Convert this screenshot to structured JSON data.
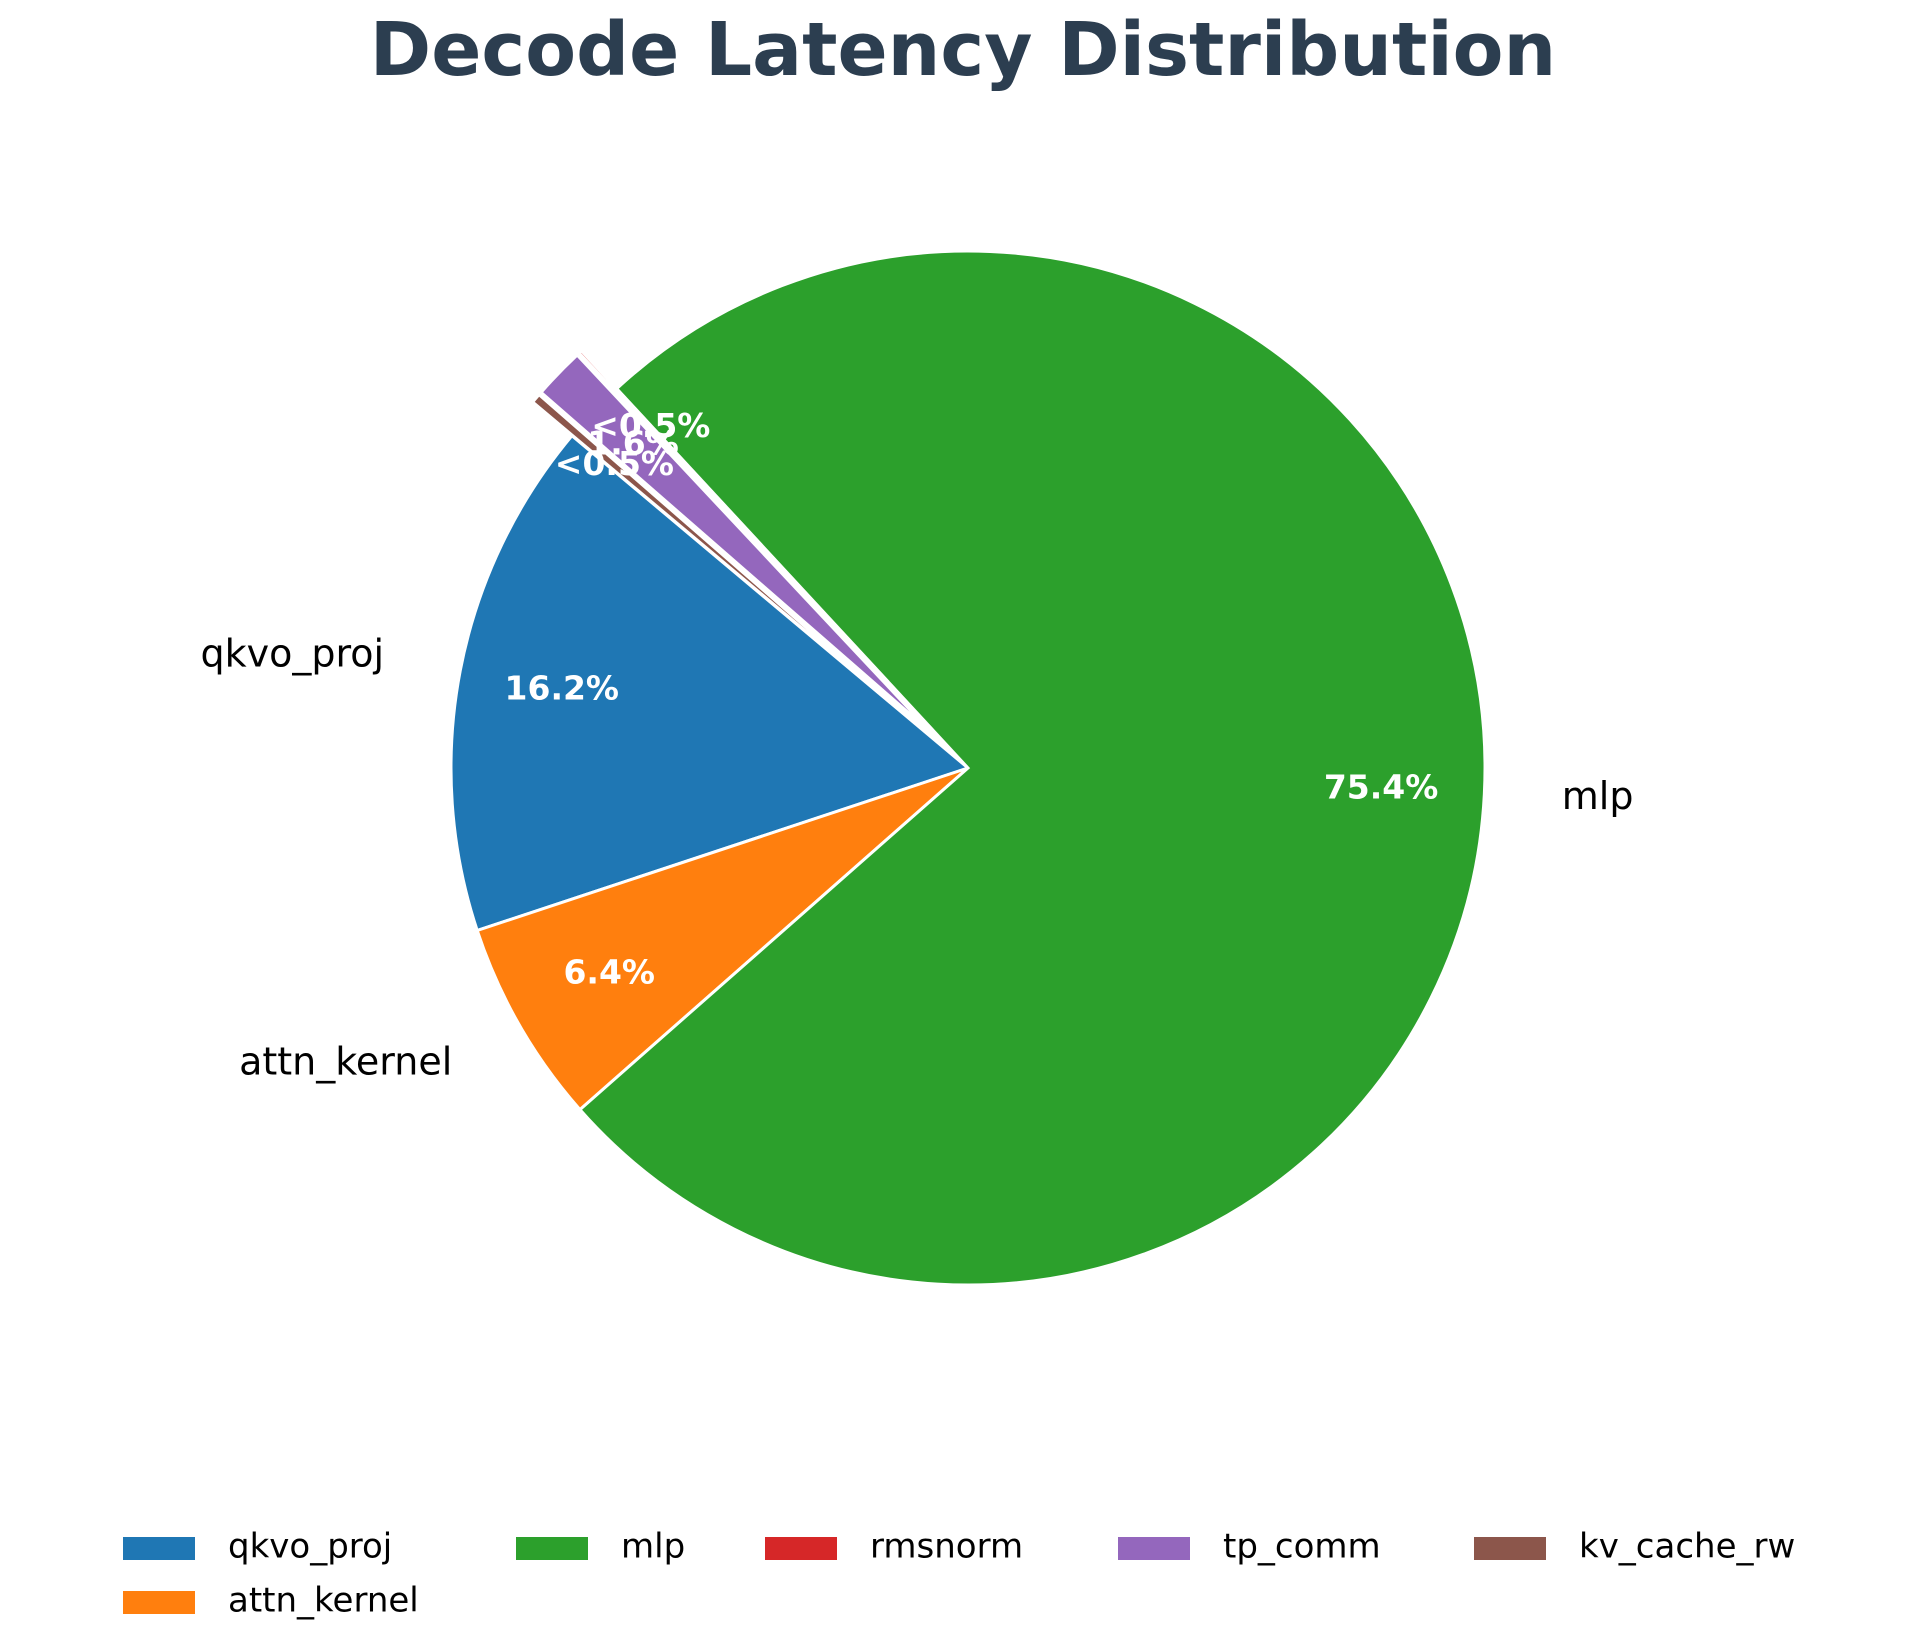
{
  "chart_data": {
    "type": "pie",
    "title": "Decode Latency Distribution",
    "start_angle_deg": 140,
    "direction": "counterclockwise",
    "slices": [
      {
        "name": "qkvo_proj",
        "value": 16.2,
        "pct_label": "16.2%",
        "color": "#1f77b4",
        "exploded": false,
        "outer_label": "qkvo_proj"
      },
      {
        "name": "attn_kernel",
        "value": 6.4,
        "pct_label": "6.4%",
        "color": "#ff7f0e",
        "exploded": false,
        "outer_label": "attn_kernel"
      },
      {
        "name": "mlp",
        "value": 75.4,
        "pct_label": "75.4%",
        "color": "#2ca02c",
        "exploded": false,
        "outer_label": "mlp"
      },
      {
        "name": "rmsnorm",
        "value": 0.1,
        "pct_label": "<0.5%",
        "color": "#d62728",
        "exploded": true,
        "outer_label": ""
      },
      {
        "name": "tp_comm",
        "value": 1.6,
        "pct_label": "1.6%",
        "color": "#9467bd",
        "exploded": true,
        "outer_label": ""
      },
      {
        "name": "kv_cache_rw",
        "value": 0.3,
        "pct_label": "<0.5%",
        "color": "#8c564b",
        "exploded": true,
        "outer_label": ""
      }
    ],
    "legend": {
      "placement": "bottom-center",
      "ncol": 5,
      "entries": [
        "qkvo_proj",
        "mlp",
        "rmsnorm",
        "tp_comm",
        "kv_cache_rw",
        "attn_kernel"
      ]
    }
  }
}
